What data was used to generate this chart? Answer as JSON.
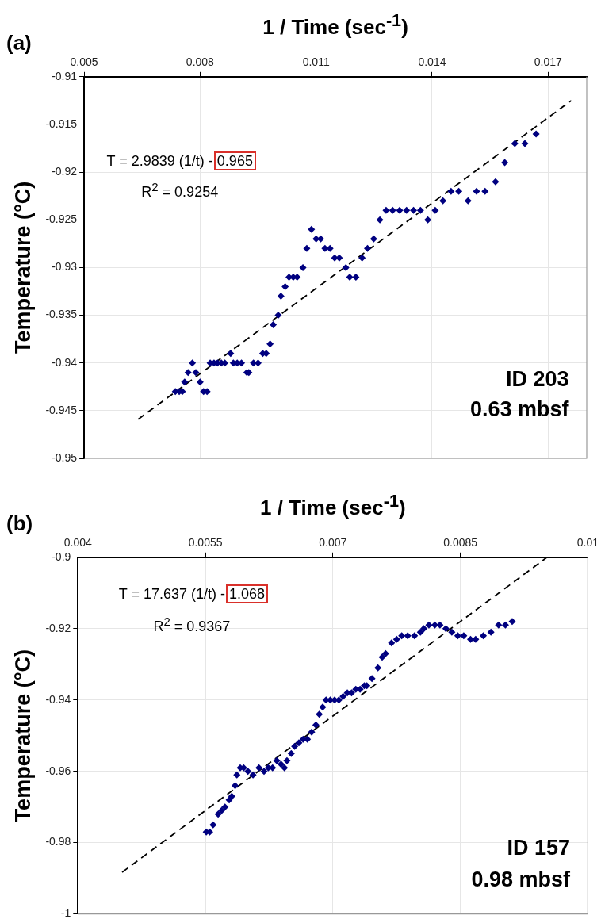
{
  "chart_data": [
    {
      "type": "scatter",
      "title": "(a)",
      "xlabel": "1 / Time (sec$^{-1}$)",
      "ylabel": "Temperature (°C)",
      "xlim": [
        0.005,
        0.018
      ],
      "xticks": [
        0.005,
        0.008,
        0.011,
        0.014,
        0.017
      ],
      "ylim": [
        -0.95,
        -0.91
      ],
      "yticks": [
        -0.95,
        -0.945,
        -0.94,
        -0.935,
        -0.93,
        -0.925,
        -0.92,
        -0.915,
        -0.91
      ],
      "grid": true,
      "marker": "diamond",
      "annotations": [
        "T = 2.9839 (1/t) - 0.965",
        "R$^{2}$ = 0.9254",
        "ID 203",
        "0.63 mbsf"
      ],
      "series": [
        {
          "color": "#000080",
          "x": [
            0.00736,
            0.00746,
            0.00754,
            0.0076,
            0.00769,
            0.0078,
            0.00789,
            0.008,
            0.00809,
            0.00818,
            0.00826,
            0.00836,
            0.00845,
            0.00855,
            0.00864,
            0.00879,
            0.00886,
            0.00896,
            0.00907,
            0.00921,
            0.00926,
            0.00938,
            0.0095,
            0.00962,
            0.00971,
            0.00981,
            0.00989,
            0.01002,
            0.01009,
            0.0102,
            0.0103,
            0.01041,
            0.01051,
            0.01066,
            0.01076,
            0.01088,
            0.011,
            0.01112,
            0.01123,
            0.01136,
            0.01148,
            0.0116,
            0.01177,
            0.01187,
            0.01203,
            0.01219,
            0.01233,
            0.01249,
            0.01265,
            0.01281,
            0.01298,
            0.01316,
            0.01334,
            0.01352,
            0.0137,
            0.01389,
            0.01408,
            0.01428,
            0.01449,
            0.01469,
            0.01493,
            0.01515,
            0.01537,
            0.01564,
            0.01588,
            0.01614,
            0.0164,
            0.01669
          ],
          "values": [
            -0.943,
            -0.943,
            -0.943,
            -0.942,
            -0.941,
            -0.94,
            -0.941,
            -0.942,
            -0.943,
            -0.943,
            -0.94,
            -0.94,
            -0.94,
            -0.94,
            -0.94,
            -0.939,
            -0.94,
            -0.94,
            -0.94,
            -0.941,
            -0.941,
            -0.94,
            -0.94,
            -0.939,
            -0.939,
            -0.938,
            -0.936,
            -0.935,
            -0.933,
            -0.932,
            -0.931,
            -0.931,
            -0.931,
            -0.93,
            -0.928,
            -0.926,
            -0.927,
            -0.927,
            -0.928,
            -0.928,
            -0.929,
            -0.929,
            -0.93,
            -0.931,
            -0.931,
            -0.929,
            -0.928,
            -0.927,
            -0.925,
            -0.924,
            -0.924,
            -0.924,
            -0.924,
            -0.924,
            -0.924,
            -0.925,
            -0.924,
            -0.923,
            -0.922,
            -0.922,
            -0.923,
            -0.922,
            -0.922,
            -0.921,
            -0.919,
            -0.917,
            -0.917,
            -0.916
          ]
        },
        {
          "type": "line",
          "color": "#000000",
          "line_style": "dashed",
          "marker": "none",
          "x": [
            0.0064,
            0.0176
          ],
          "values": [
            -0.9459,
            -0.9125
          ]
        }
      ]
    },
    {
      "type": "scatter",
      "title": "(b)",
      "xlabel": "1 / Time (sec$^{-1}$)",
      "ylabel": "Temperature (°C)",
      "xlim": [
        0.004,
        0.01
      ],
      "xticks": [
        0.004,
        0.0055,
        0.007,
        0.0085,
        0.01
      ],
      "ylim": [
        -1,
        -0.9
      ],
      "yticks": [
        -1,
        -0.98,
        -0.96,
        -0.94,
        -0.92,
        -0.9
      ],
      "grid": true,
      "marker": "diamond",
      "annotations": [
        "T = 17.637 (1/t) - 1.068",
        "R$^{2}$ = 0.9367",
        "ID 157",
        "0.98 mbsf"
      ],
      "series": [
        {
          "color": "#000080",
          "x": [
            0.00551,
            0.00555,
            0.00559,
            0.00565,
            0.00569,
            0.00573,
            0.00578,
            0.00581,
            0.00585,
            0.00587,
            0.00591,
            0.00595,
            0.006,
            0.00606,
            0.00613,
            0.00619,
            0.00624,
            0.00629,
            0.00634,
            0.00639,
            0.00643,
            0.00646,
            0.00651,
            0.00655,
            0.0066,
            0.00665,
            0.0067,
            0.00675,
            0.0068,
            0.00684,
            0.00688,
            0.00692,
            0.00697,
            0.00702,
            0.00707,
            0.00712,
            0.00717,
            0.00722,
            0.00727,
            0.00732,
            0.00737,
            0.0074,
            0.00746,
            0.00753,
            0.00758,
            0.00762,
            0.00769,
            0.00775,
            0.00781,
            0.00788,
            0.00796,
            0.00803,
            0.00807,
            0.00813,
            0.0082,
            0.00826,
            0.00833,
            0.0084,
            0.00847,
            0.00854,
            0.00862,
            0.00868,
            0.00877,
            0.00886,
            0.00895,
            0.00903,
            0.00911
          ],
          "values": [
            -0.977,
            -0.977,
            -0.975,
            -0.972,
            -0.971,
            -0.97,
            -0.968,
            -0.967,
            -0.964,
            -0.961,
            -0.959,
            -0.959,
            -0.96,
            -0.961,
            -0.959,
            -0.96,
            -0.959,
            -0.959,
            -0.957,
            -0.958,
            -0.959,
            -0.957,
            -0.955,
            -0.953,
            -0.952,
            -0.951,
            -0.951,
            -0.949,
            -0.947,
            -0.944,
            -0.942,
            -0.94,
            -0.94,
            -0.94,
            -0.94,
            -0.939,
            -0.938,
            -0.938,
            -0.937,
            -0.937,
            -0.936,
            -0.936,
            -0.934,
            -0.931,
            -0.928,
            -0.927,
            -0.924,
            -0.923,
            -0.922,
            -0.922,
            -0.922,
            -0.921,
            -0.92,
            -0.919,
            -0.919,
            -0.919,
            -0.92,
            -0.921,
            -0.922,
            -0.922,
            -0.923,
            -0.923,
            -0.922,
            -0.921,
            -0.919,
            -0.919,
            -0.918
          ]
        },
        {
          "type": "line",
          "color": "#000000",
          "line_style": "dashed",
          "marker": "none",
          "x": [
            0.00452,
            0.00952
          ],
          "values": [
            -0.9883,
            -0.9
          ]
        }
      ]
    }
  ]
}
